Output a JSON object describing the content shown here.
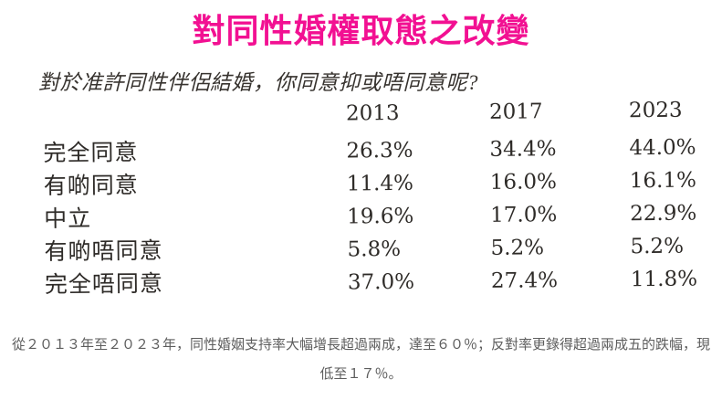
{
  "page": {
    "title": "對同性婚權取態之改變",
    "subtitle": "對於准許同性伴侶結婚，你同意抑或唔同意呢?",
    "footer": "從２０１３年至２０２３年，同性婚姻支持率大幅增長超過兩成，達至６０％；反對率更錄得超過兩成五的跌幅，現低至１７％。"
  },
  "colors": {
    "title_pink": "#F21092",
    "table_text": "#2e2b28",
    "footer_gray": "#5d5d5d",
    "background": "#ffffff"
  },
  "chart_data": {
    "type": "table",
    "title": "對同性婚權取態之改變",
    "question": "對於准許同性伴侶結婚，你同意抑或唔同意呢?",
    "columns": [
      "2013",
      "2017",
      "2023"
    ],
    "rows": [
      {
        "label": "完全同意",
        "values": [
          "26.3%",
          "34.4%",
          "44.0%"
        ]
      },
      {
        "label": "有啲同意",
        "values": [
          "11.4%",
          "16.0%",
          "16.1%"
        ]
      },
      {
        "label": "中立",
        "values": [
          "19.6%",
          "17.0%",
          "22.9%"
        ]
      },
      {
        "label": "有啲唔同意",
        "values": [
          "5.8%",
          "5.2%",
          "5.2%"
        ]
      },
      {
        "label": "完全唔同意",
        "values": [
          "37.0%",
          "27.4%",
          "11.8%"
        ]
      }
    ],
    "notes": "從２０１３年至２０２３年，同性婚姻支持率大幅增長超過兩成，達至６０％；反對率更錄得超過兩成五的跌幅，現低至１７％。"
  }
}
